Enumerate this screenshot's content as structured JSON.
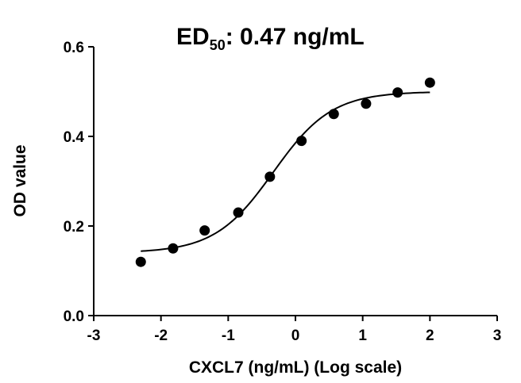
{
  "chart_data": {
    "type": "scatter",
    "title": {
      "main": "ED",
      "subscript": "50",
      "rest": ": 0.47 ng/mL"
    },
    "xlabel": "CXCL7 (ng/mL) (Log scale)",
    "ylabel": "OD value",
    "xlim": [
      -3,
      3
    ],
    "ylim": [
      0.0,
      0.6
    ],
    "xticks": [
      -3,
      -2,
      -1,
      0,
      1,
      2,
      3
    ],
    "yticks": [
      0.0,
      0.2,
      0.4,
      0.6
    ],
    "ytick_labels": [
      "0.0",
      "0.2",
      "0.4",
      "0.6"
    ],
    "grid": false,
    "series": [
      {
        "x": [
          -2.3,
          -1.82,
          -1.35,
          -0.85,
          -0.38,
          0.09,
          0.57,
          1.05,
          1.52,
          2.0
        ],
        "y": [
          0.12,
          0.15,
          0.19,
          0.23,
          0.31,
          0.39,
          0.45,
          0.473,
          0.498,
          0.52
        ]
      }
    ],
    "fit_curve": {
      "type": "sigmoid",
      "bottom": 0.14,
      "top": 0.5,
      "log_ec50": -0.33,
      "hill_slope": 1.0,
      "x_range": [
        -2.3,
        2.0
      ]
    },
    "colors": {
      "points": "#000000",
      "curve": "#000000",
      "axes": "#000000"
    }
  }
}
